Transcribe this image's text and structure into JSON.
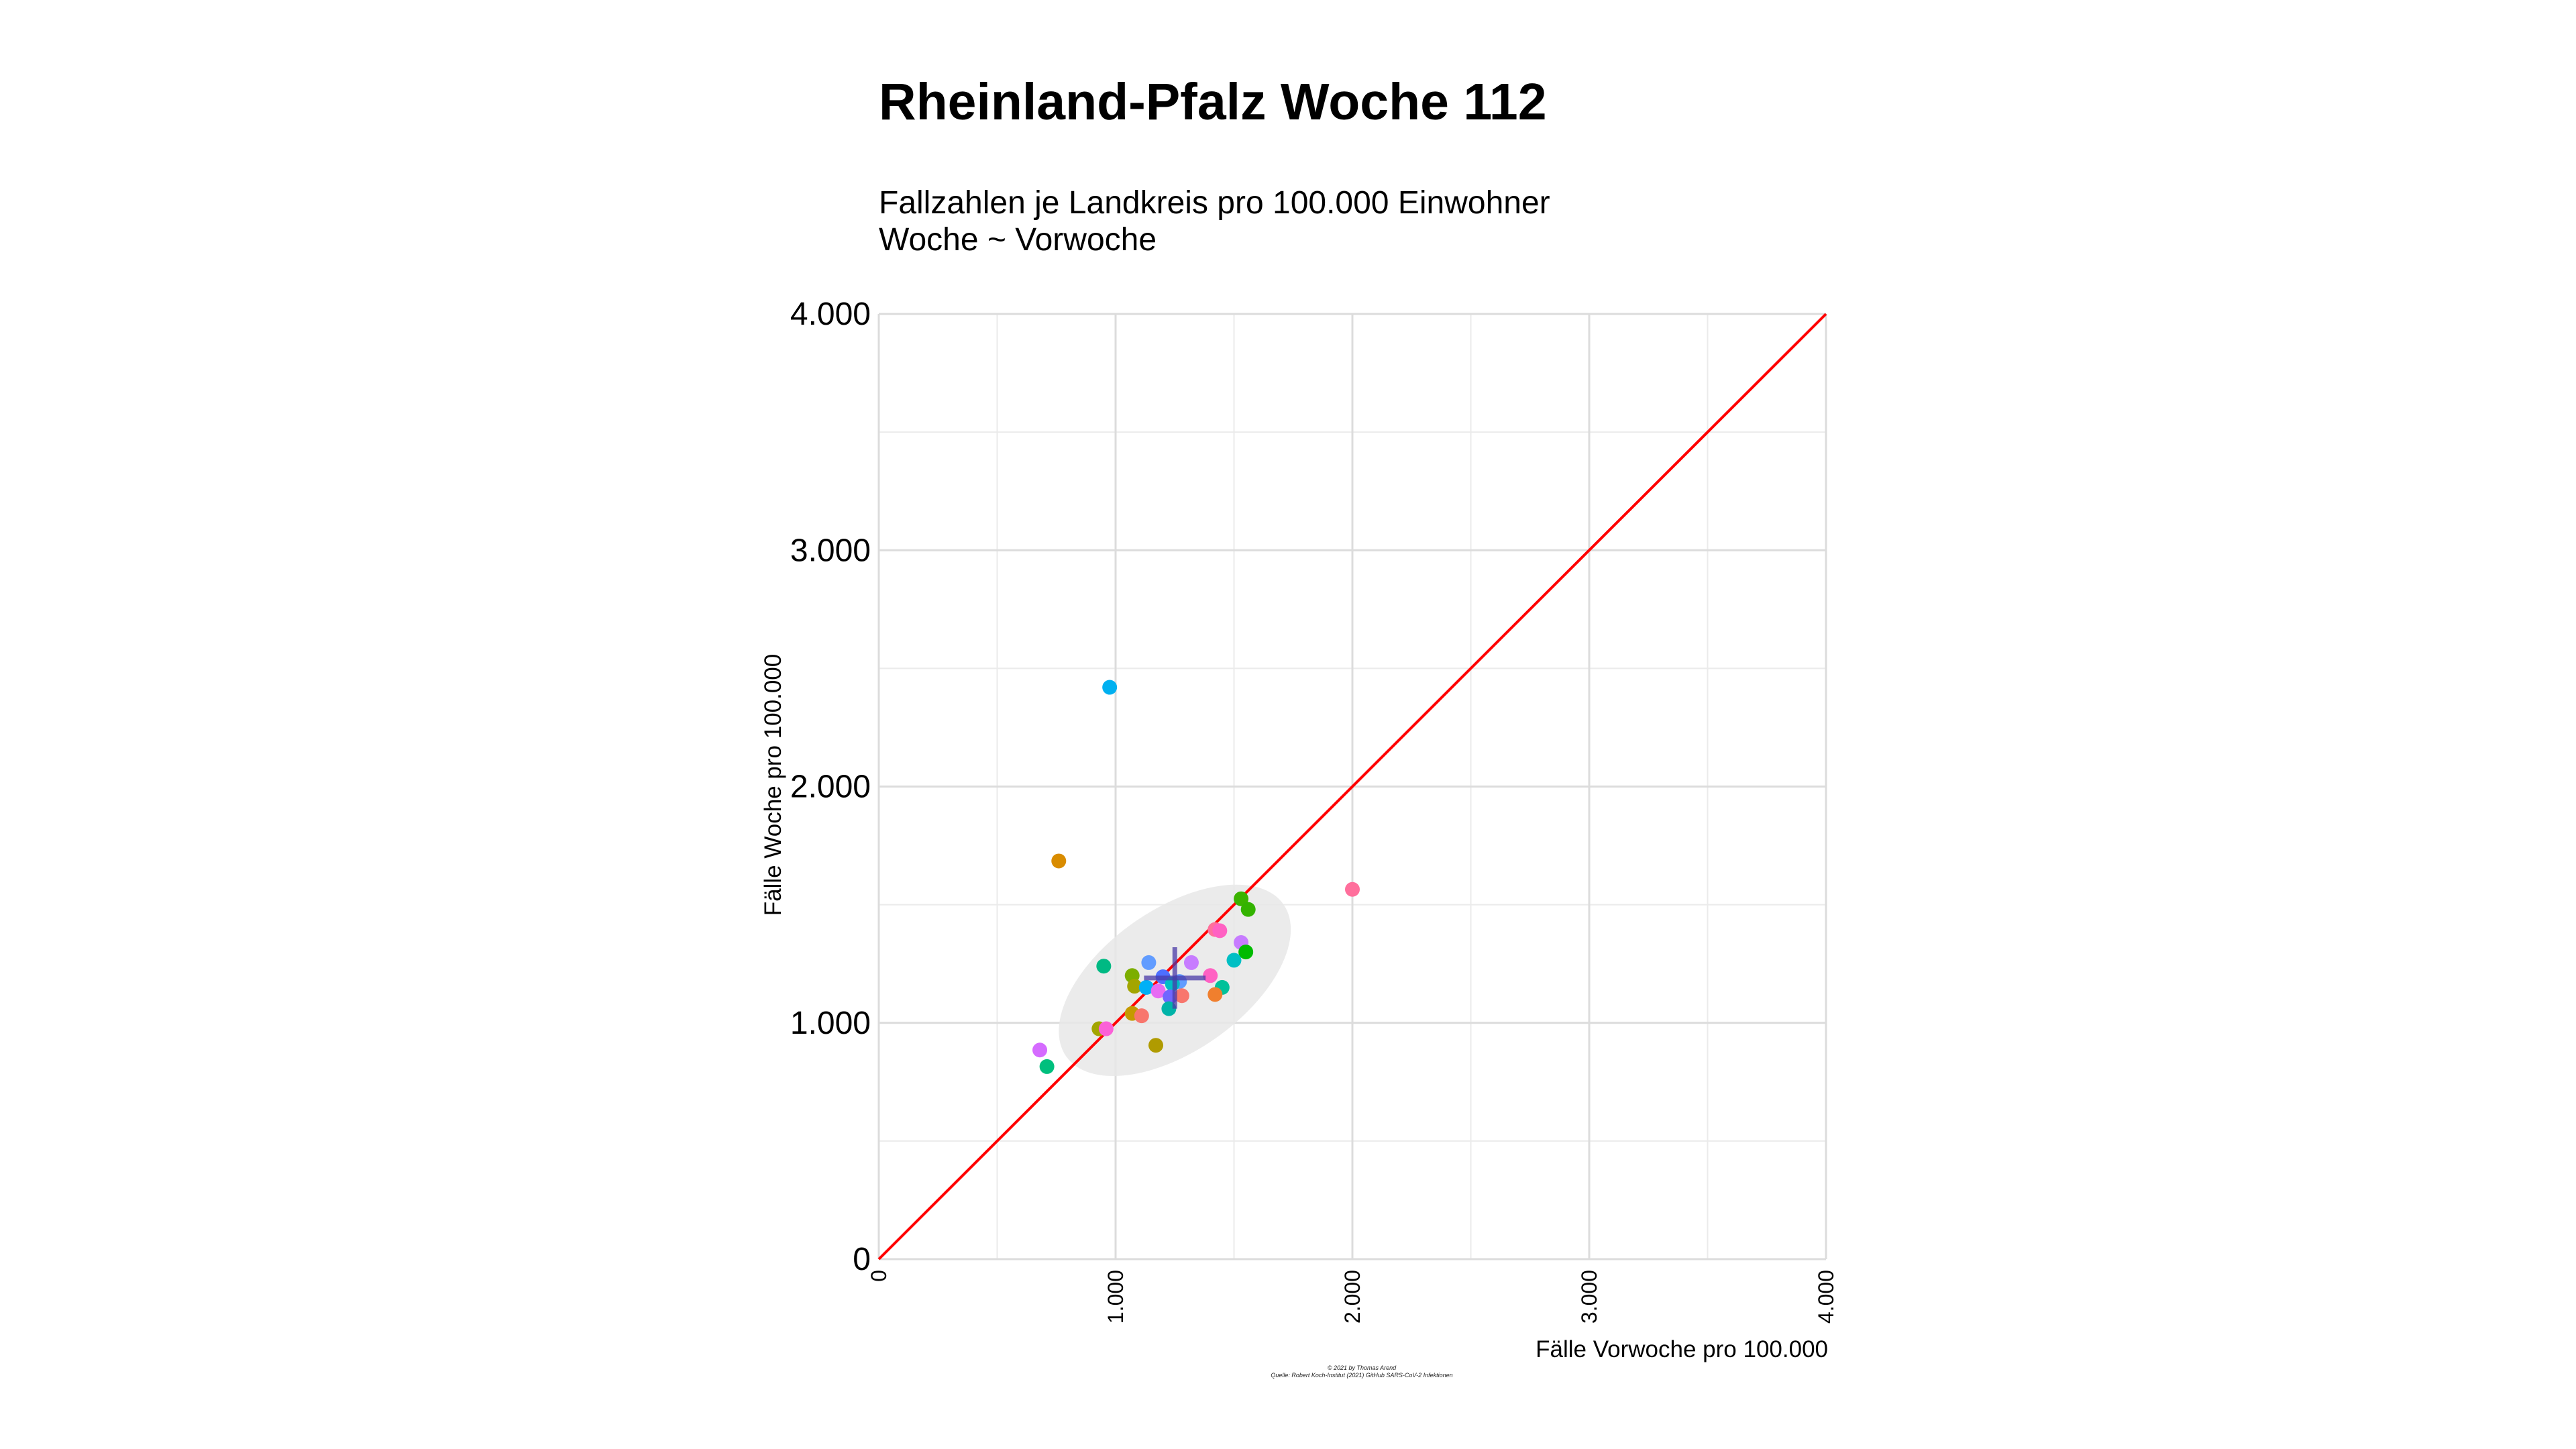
{
  "chart_data": {
    "type": "scatter",
    "title": "Rheinland-Pfalz Woche 112",
    "subtitle": [
      "Fallzahlen je Landkreis pro 100.000 Einwohner",
      "Woche ~ Vorwoche"
    ],
    "xlabel": "Fälle Vorwoche pro 100.000",
    "ylabel": "Fälle Woche pro 100.000",
    "xlim": [
      0,
      4000
    ],
    "ylim": [
      0,
      4000
    ],
    "x_ticks": [
      0,
      1000,
      2000,
      3000,
      4000
    ],
    "y_ticks": [
      0,
      1000,
      2000,
      3000,
      4000
    ],
    "x_tick_labels": [
      "0",
      "1.000",
      "2.000",
      "3.000",
      "4.000"
    ],
    "y_tick_labels": [
      "0",
      "1.000",
      "2.000",
      "3.000",
      "4.000"
    ],
    "minor_grid": [
      500,
      1500,
      2500,
      3500
    ],
    "grid": true,
    "legend": "none",
    "reference_line": {
      "from": [
        0,
        0
      ],
      "to": [
        4000,
        4000
      ],
      "color": "#ff0000"
    },
    "ellipse": {
      "cx": 1250,
      "cy": 1180,
      "rx": 560,
      "ry": 300,
      "angle_deg": 35,
      "color": "#e8e8e8"
    },
    "mean_cross": {
      "x": 1250,
      "y": 1190,
      "half_width": 130,
      "half_height": 130,
      "color": "#4a3aa8"
    },
    "points": [
      {
        "x": 975,
        "y": 2420,
        "color": "#00b0f0"
      },
      {
        "x": 760,
        "y": 1685,
        "color": "#d98c00"
      },
      {
        "x": 2000,
        "y": 1565,
        "color": "#ff6f9c"
      },
      {
        "x": 1530,
        "y": 1525,
        "color": "#3bb300"
      },
      {
        "x": 1560,
        "y": 1480,
        "color": "#33b300"
      },
      {
        "x": 1420,
        "y": 1395,
        "color": "#ff6f9c"
      },
      {
        "x": 1440,
        "y": 1390,
        "color": "#ff61c3"
      },
      {
        "x": 1530,
        "y": 1340,
        "color": "#c77cff"
      },
      {
        "x": 1550,
        "y": 1300,
        "color": "#00bb00"
      },
      {
        "x": 1500,
        "y": 1265,
        "color": "#00bfc4"
      },
      {
        "x": 1320,
        "y": 1255,
        "color": "#c77cff"
      },
      {
        "x": 1140,
        "y": 1255,
        "color": "#619cff"
      },
      {
        "x": 950,
        "y": 1240,
        "color": "#00b983"
      },
      {
        "x": 1070,
        "y": 1200,
        "color": "#7cae00"
      },
      {
        "x": 1200,
        "y": 1195,
        "color": "#4d6fff"
      },
      {
        "x": 1400,
        "y": 1200,
        "color": "#ff61c3"
      },
      {
        "x": 1270,
        "y": 1175,
        "color": "#619cff"
      },
      {
        "x": 1240,
        "y": 1165,
        "color": "#00bfc4"
      },
      {
        "x": 1080,
        "y": 1155,
        "color": "#a3a500"
      },
      {
        "x": 1130,
        "y": 1150,
        "color": "#00b0f6"
      },
      {
        "x": 1180,
        "y": 1135,
        "color": "#e76bf3"
      },
      {
        "x": 1450,
        "y": 1150,
        "color": "#00c19a"
      },
      {
        "x": 1230,
        "y": 1110,
        "color": "#6f66ff"
      },
      {
        "x": 1280,
        "y": 1115,
        "color": "#f8766d"
      },
      {
        "x": 1420,
        "y": 1120,
        "color": "#f07f2e"
      },
      {
        "x": 1225,
        "y": 1060,
        "color": "#00b3a8"
      },
      {
        "x": 1070,
        "y": 1040,
        "color": "#c49a00"
      },
      {
        "x": 1110,
        "y": 1030,
        "color": "#f8766d"
      },
      {
        "x": 930,
        "y": 975,
        "color": "#a3a500"
      },
      {
        "x": 960,
        "y": 975,
        "color": "#fb61d7"
      },
      {
        "x": 1170,
        "y": 905,
        "color": "#b09b00"
      },
      {
        "x": 680,
        "y": 885,
        "color": "#d56bff"
      },
      {
        "x": 710,
        "y": 815,
        "color": "#00bf7d"
      }
    ],
    "caption": [
      "© 2021 by Thomas Arend",
      "Quelle: Robert Koch-Institut (2021) GitHub SARS-CoV-2 Infektionen"
    ]
  }
}
